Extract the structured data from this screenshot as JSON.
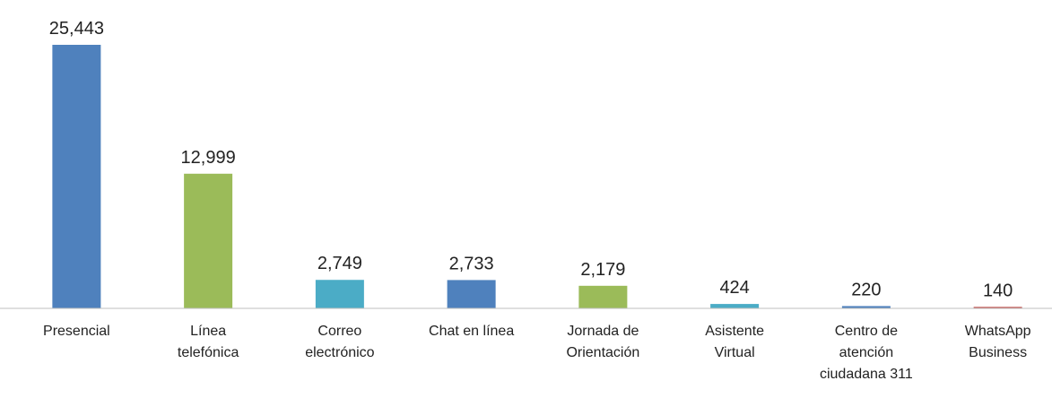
{
  "chart_data": {
    "type": "bar",
    "categories": [
      "Presencial",
      "Línea\ntelefónica",
      "Correo\nelectrónico",
      "Chat en línea",
      "Jornada de\nOrientación",
      "Asistente\nVirtual",
      "Centro de\natención\nciudadana 311",
      "WhatsApp\nBusiness"
    ],
    "values": [
      25443,
      12999,
      2749,
      2733,
      2179,
      424,
      220,
      140
    ],
    "value_labels": [
      "25,443",
      "12,999",
      "2,749",
      "2,733",
      "2,179",
      "424",
      "220",
      "140"
    ],
    "colors": [
      "#4f81bd",
      "#9bbb59",
      "#4bacc6",
      "#4f81bd",
      "#9bbb59",
      "#4bacc6",
      "#4f81bd",
      "#c0504d"
    ],
    "ylim": [
      0,
      27000
    ]
  }
}
